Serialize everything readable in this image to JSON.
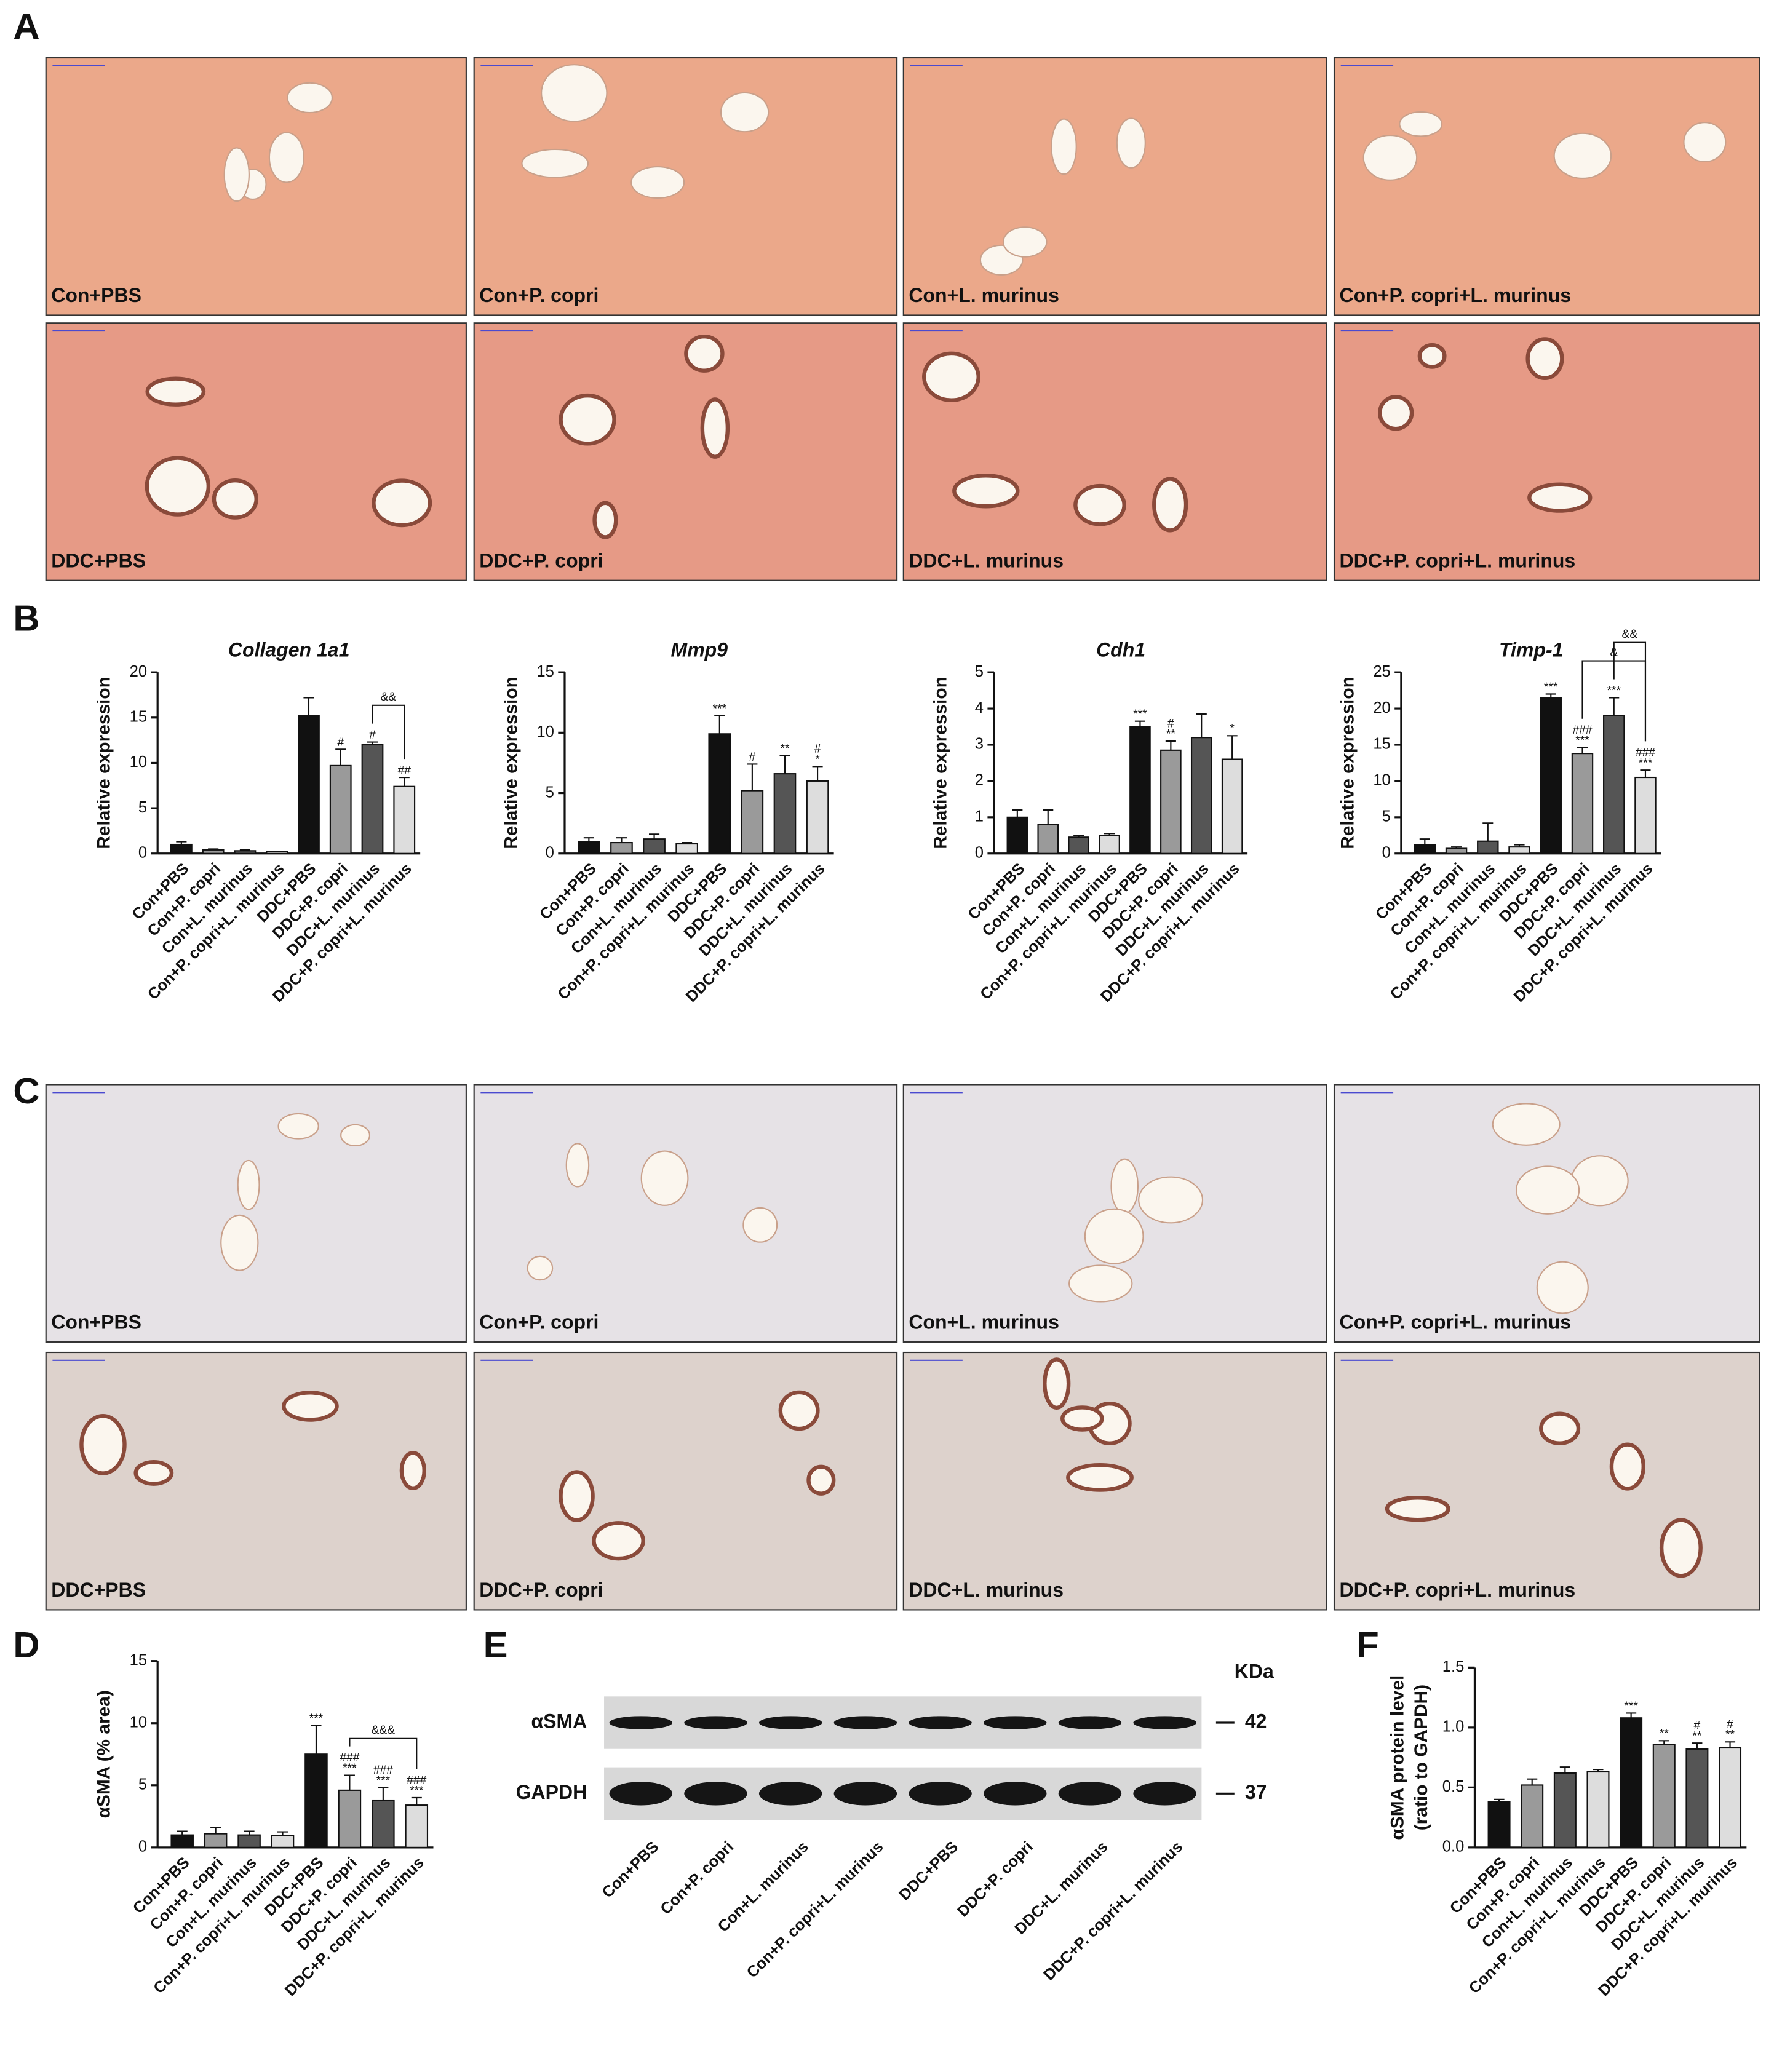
{
  "panels": [
    "A",
    "B",
    "C",
    "D",
    "E",
    "F"
  ],
  "panel_a": {
    "labels": [
      "Con+PBS",
      "Con+P. copri",
      "Con+L. murinus",
      "Con+P. copri+L. murinus",
      "DDC+PBS",
      "DDC+P. copri",
      "DDC+L. murinus",
      "DDC+P. copri+L. murinus"
    ]
  },
  "panel_c": {
    "labels": [
      "Con+PBS",
      "Con+P. copri",
      "Con+L. murinus",
      "Con+P. copri+L. murinus",
      "DDC+PBS",
      "DDC+P. copri",
      "DDC+L. murinus",
      "DDC+P. copri+L. murinus"
    ]
  },
  "panel_e": {
    "unit": "KDa",
    "rows": [
      {
        "label": "αSMA",
        "size": 42
      },
      {
        "label": "GAPDH",
        "size": 37
      }
    ],
    "lanes": [
      "Con+PBS",
      "Con+P. copri",
      "Con+L. murinus",
      "Con+P. copri+L. murinus",
      "DDC+PBS",
      "DDC+P. copri",
      "DDC+L. murinus",
      "DDC+P. copri+L. murinus"
    ]
  },
  "chart_data": [
    {
      "type": "bar",
      "title": "Collagen 1a1",
      "y_label": "Relative expression",
      "categories": [
        "Con+PBS",
        "Con+P. copri",
        "Con+L. murinus",
        "Con+P. copri+L. murinus",
        "DDC+PBS",
        "DDC+P. copri",
        "DDC+L. murinus",
        "DDC+P. copri+L. murinus"
      ],
      "values": [
        1.0,
        0.4,
        0.3,
        0.2,
        15.2,
        9.7,
        12.0,
        7.4
      ],
      "errors": [
        0.3,
        0.1,
        0.1,
        0.05,
        2.0,
        1.8,
        0.3,
        1.0
      ],
      "colors": [
        "#111111",
        "#9a9a9a",
        "#555555",
        "#dddddd",
        "#111111",
        "#9a9a9a",
        "#555555",
        "#dddddd"
      ],
      "annotations": [
        [],
        [],
        [],
        [],
        [],
        [
          "#"
        ],
        [
          "#"
        ],
        [
          "##"
        ]
      ],
      "brackets": [
        {
          "label": "&&",
          "from": "DDC+L. murinus",
          "to": "DDC+P. copri+L. murinus"
        }
      ],
      "ylim": [
        0,
        20
      ],
      "yticks": [
        0,
        5,
        10,
        15,
        20
      ]
    },
    {
      "type": "bar",
      "title": "Mmp9",
      "y_label": "Relative expression",
      "categories": [
        "Con+PBS",
        "Con+P. copri",
        "Con+L. murinus",
        "Con+P. copri+L. murinus",
        "DDC+PBS",
        "DDC+P. copri",
        "DDC+L. murinus",
        "DDC+P. copri+L. murinus"
      ],
      "values": [
        1.0,
        0.9,
        1.2,
        0.8,
        9.9,
        5.2,
        6.6,
        6.0
      ],
      "errors": [
        0.3,
        0.4,
        0.4,
        0.1,
        1.5,
        2.2,
        1.5,
        1.2
      ],
      "colors": [
        "#111111",
        "#9a9a9a",
        "#555555",
        "#dddddd",
        "#111111",
        "#9a9a9a",
        "#555555",
        "#dddddd"
      ],
      "annotations": [
        [],
        [],
        [],
        [],
        [
          "***"
        ],
        [
          "#"
        ],
        [
          "**"
        ],
        [
          "#",
          "*"
        ]
      ],
      "ylim": [
        0,
        15
      ],
      "yticks": [
        0,
        5,
        10,
        15
      ]
    },
    {
      "type": "bar",
      "title": "Cdh1",
      "y_label": "Relative expression",
      "categories": [
        "Con+PBS",
        "Con+P. copri",
        "Con+L. murinus",
        "Con+P. copri+L. murinus",
        "DDC+PBS",
        "DDC+P. copri",
        "DDC+L. murinus",
        "DDC+P. copri+L. murinus"
      ],
      "values": [
        1.0,
        0.8,
        0.45,
        0.5,
        3.5,
        2.85,
        3.2,
        2.6
      ],
      "errors": [
        0.2,
        0.4,
        0.05,
        0.05,
        0.15,
        0.25,
        0.65,
        0.65
      ],
      "colors": [
        "#111111",
        "#9a9a9a",
        "#555555",
        "#dddddd",
        "#111111",
        "#9a9a9a",
        "#555555",
        "#dddddd"
      ],
      "annotations": [
        [],
        [],
        [],
        [],
        [
          "***"
        ],
        [
          "#",
          "**"
        ],
        [],
        [
          "*"
        ]
      ],
      "ylim": [
        0,
        5
      ],
      "yticks": [
        0,
        1,
        2,
        3,
        4,
        5
      ]
    },
    {
      "type": "bar",
      "title": "Timp-1",
      "y_label": "Relative expression",
      "categories": [
        "Con+PBS",
        "Con+P. copri",
        "Con+L. murinus",
        "Con+P. copri+L. murinus",
        "DDC+PBS",
        "DDC+P. copri",
        "DDC+L. murinus",
        "DDC+P. copri+L. murinus"
      ],
      "values": [
        1.2,
        0.7,
        1.7,
        0.9,
        21.5,
        13.8,
        19.0,
        10.5
      ],
      "errors": [
        0.8,
        0.2,
        2.5,
        0.3,
        0.5,
        0.8,
        2.5,
        1.0
      ],
      "colors": [
        "#111111",
        "#9a9a9a",
        "#555555",
        "#dddddd",
        "#111111",
        "#9a9a9a",
        "#555555",
        "#dddddd"
      ],
      "annotations": [
        [],
        [],
        [],
        [],
        [
          "***"
        ],
        [
          "###",
          "***"
        ],
        [
          "***"
        ],
        [
          "###",
          "***"
        ]
      ],
      "brackets": [
        {
          "label": "&",
          "from": "DDC+P. copri",
          "to": "DDC+P. copri+L. murinus"
        },
        {
          "label": "&&",
          "from": "DDC+L. murinus",
          "to": "DDC+P. copri+L. murinus"
        }
      ],
      "ylim": [
        0,
        25
      ],
      "yticks": [
        0,
        5,
        10,
        15,
        20,
        25
      ]
    },
    {
      "type": "bar",
      "y_label": "αSMA (% area)",
      "categories": [
        "Con+PBS",
        "Con+P. copri",
        "Con+L. murinus",
        "Con+P. copri+L. murinus",
        "DDC+PBS",
        "DDC+P. copri",
        "DDC+L. murinus",
        "DDC+P. copri+L. murinus"
      ],
      "values": [
        1.0,
        1.1,
        1.0,
        0.95,
        7.5,
        4.6,
        3.8,
        3.4
      ],
      "errors": [
        0.3,
        0.5,
        0.3,
        0.3,
        2.3,
        1.2,
        1.0,
        0.6
      ],
      "colors": [
        "#111111",
        "#9a9a9a",
        "#555555",
        "#dddddd",
        "#111111",
        "#9a9a9a",
        "#555555",
        "#dddddd"
      ],
      "annotations": [
        [],
        [],
        [],
        [],
        [
          "***"
        ],
        [
          "###",
          "***"
        ],
        [
          "###",
          "***"
        ],
        [
          "###",
          "***"
        ]
      ],
      "brackets": [
        {
          "label": "&&&",
          "from": "DDC+P. copri",
          "to": "DDC+P. copri+L. murinus"
        }
      ],
      "ylim": [
        0,
        15
      ],
      "yticks": [
        0,
        5,
        10,
        15
      ]
    },
    {
      "type": "bar",
      "y_label": [
        "αSMA protein level",
        "(ratio to GAPDH)"
      ],
      "categories": [
        "Con+PBS",
        "Con+P. copri",
        "Con+L. murinus",
        "Con+P. copri+L. murinus",
        "DDC+PBS",
        "DDC+P. copri",
        "DDC+L. murinus",
        "DDC+P. copri+L. murinus"
      ],
      "values": [
        0.38,
        0.52,
        0.62,
        0.63,
        1.08,
        0.86,
        0.82,
        0.83
      ],
      "errors": [
        0.02,
        0.05,
        0.05,
        0.02,
        0.04,
        0.03,
        0.05,
        0.05
      ],
      "colors": [
        "#111111",
        "#9a9a9a",
        "#555555",
        "#dddddd",
        "#111111",
        "#9a9a9a",
        "#555555",
        "#dddddd"
      ],
      "annotations": [
        [],
        [],
        [],
        [],
        [
          "***"
        ],
        [
          "**"
        ],
        [
          "#",
          "**"
        ],
        [
          "#",
          "**"
        ]
      ],
      "ylim": [
        0,
        1.5
      ],
      "yticks": [
        {
          "value": 0,
          "label": "0.0"
        },
        {
          "value": 0.5,
          "label": "0.5"
        },
        {
          "value": 1,
          "label": "1.0"
        },
        {
          "value": 1.5,
          "label": "1.5"
        }
      ]
    }
  ]
}
